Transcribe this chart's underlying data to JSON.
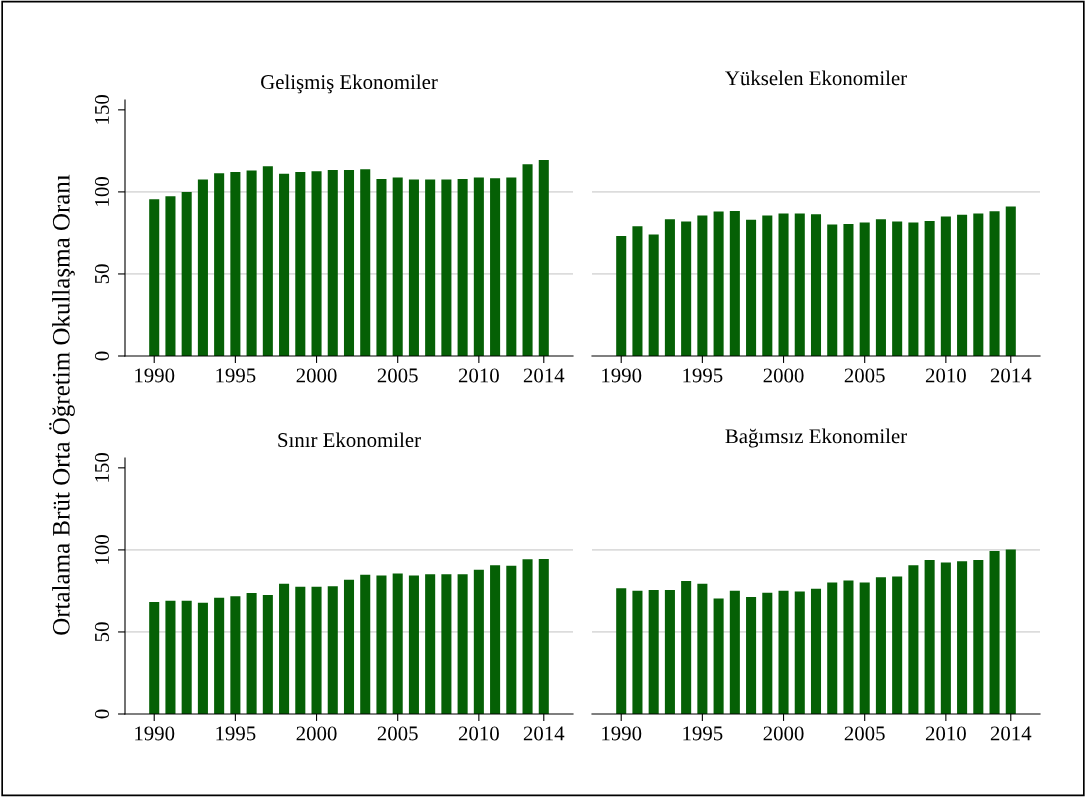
{
  "chart_data": [
    {
      "type": "bar",
      "title": "Gelişmiş Ekonomiler",
      "ylabel": "Ortalama Brüt Orta Öğretim Okullaşma Oranı",
      "x": [
        1990,
        1991,
        1992,
        1993,
        1994,
        1995,
        1996,
        1997,
        1998,
        1999,
        2000,
        2001,
        2002,
        2003,
        2004,
        2005,
        2006,
        2007,
        2008,
        2009,
        2010,
        2011,
        2012,
        2013,
        2014
      ],
      "series": [
        {
          "color": "#056005",
          "values": [
            95.5,
            97.4,
            100,
            107.5,
            111.4,
            112.2,
            113,
            115.6,
            111,
            112.2,
            112.6,
            113.4,
            113.4,
            113.8,
            107.9,
            108.7,
            107.5,
            107.5,
            107.5,
            107.9,
            108.7,
            108.3,
            108.7,
            116.8,
            119.5
          ]
        }
      ],
      "xlim": [
        1988.2,
        2015.8
      ],
      "xticks": [
        1990,
        1995,
        2000,
        2005,
        2010,
        2014
      ],
      "ylim": [
        0,
        156
      ],
      "yticks": [
        0,
        50,
        100,
        150
      ],
      "grid": "y"
    },
    {
      "type": "bar",
      "title": "Yükselen Ekonomiler",
      "x": [
        1990,
        1991,
        1992,
        1993,
        1994,
        1995,
        1996,
        1997,
        1998,
        1999,
        2000,
        2001,
        2002,
        2003,
        2004,
        2005,
        2006,
        2007,
        2008,
        2009,
        2010,
        2011,
        2012,
        2013,
        2014
      ],
      "series": [
        {
          "color": "#056005",
          "values": [
            73.2,
            79.1,
            74,
            83.4,
            81.9,
            85.6,
            88,
            88.4,
            83,
            85.6,
            86.8,
            86.8,
            86.4,
            80.1,
            80.5,
            81.3,
            83.4,
            81.9,
            81.3,
            82.2,
            85,
            86,
            86.8,
            88.2,
            91.1
          ]
        }
      ],
      "xlim": [
        1988.2,
        2015.8
      ],
      "xticks": [
        1990,
        1995,
        2000,
        2005,
        2010,
        2014
      ],
      "ylim": [
        0,
        150
      ],
      "yticks": [
        0,
        50,
        100,
        150
      ],
      "grid": "y",
      "tick_labels": "x"
    },
    {
      "type": "bar",
      "title": "Sınır Ekonomiler",
      "x": [
        1990,
        1991,
        1992,
        1993,
        1994,
        1995,
        1996,
        1997,
        1998,
        1999,
        2000,
        2001,
        2002,
        2003,
        2004,
        2005,
        2006,
        2007,
        2008,
        2009,
        2010,
        2011,
        2012,
        2013,
        2014
      ],
      "series": [
        {
          "color": "#056005",
          "values": [
            68.2,
            69,
            69,
            67.8,
            70.9,
            71.7,
            73.7,
            72.5,
            79.4,
            77.5,
            77.5,
            77.9,
            81.8,
            84.8,
            84.4,
            85.6,
            84.4,
            85.2,
            85.2,
            85.2,
            87.9,
            90.7,
            90.3,
            94.3,
            94.5
          ]
        }
      ],
      "xlim": [
        1988.2,
        2015.8
      ],
      "xticks": [
        1990,
        1995,
        2000,
        2005,
        2010,
        2014
      ],
      "ylim": [
        0,
        156
      ],
      "yticks": [
        0,
        50,
        100,
        150
      ],
      "grid": "y"
    },
    {
      "type": "bar",
      "title": "Bağımsız Ekonomiler",
      "x": [
        1990,
        1991,
        1992,
        1993,
        1994,
        1995,
        1996,
        1997,
        1998,
        1999,
        2000,
        2001,
        2002,
        2003,
        2004,
        2005,
        2006,
        2007,
        2008,
        2009,
        2010,
        2011,
        2012,
        2013,
        2014
      ],
      "series": [
        {
          "color": "#056005",
          "values": [
            76.7,
            75.1,
            75.5,
            75.5,
            81,
            79.4,
            70.4,
            75.1,
            71.3,
            73.9,
            75.1,
            74.7,
            76.3,
            80.2,
            81.4,
            80.2,
            83.4,
            83.8,
            90.7,
            93.9,
            92.3,
            93.1,
            93.9,
            99.4,
            100.2
          ]
        }
      ],
      "xlim": [
        1988.2,
        2015.8
      ],
      "xticks": [
        1990,
        1995,
        2000,
        2005,
        2010,
        2014
      ],
      "ylim": [
        0,
        150
      ],
      "yticks": [
        0,
        50,
        100,
        150
      ],
      "grid": "y",
      "tick_labels": "x"
    }
  ]
}
